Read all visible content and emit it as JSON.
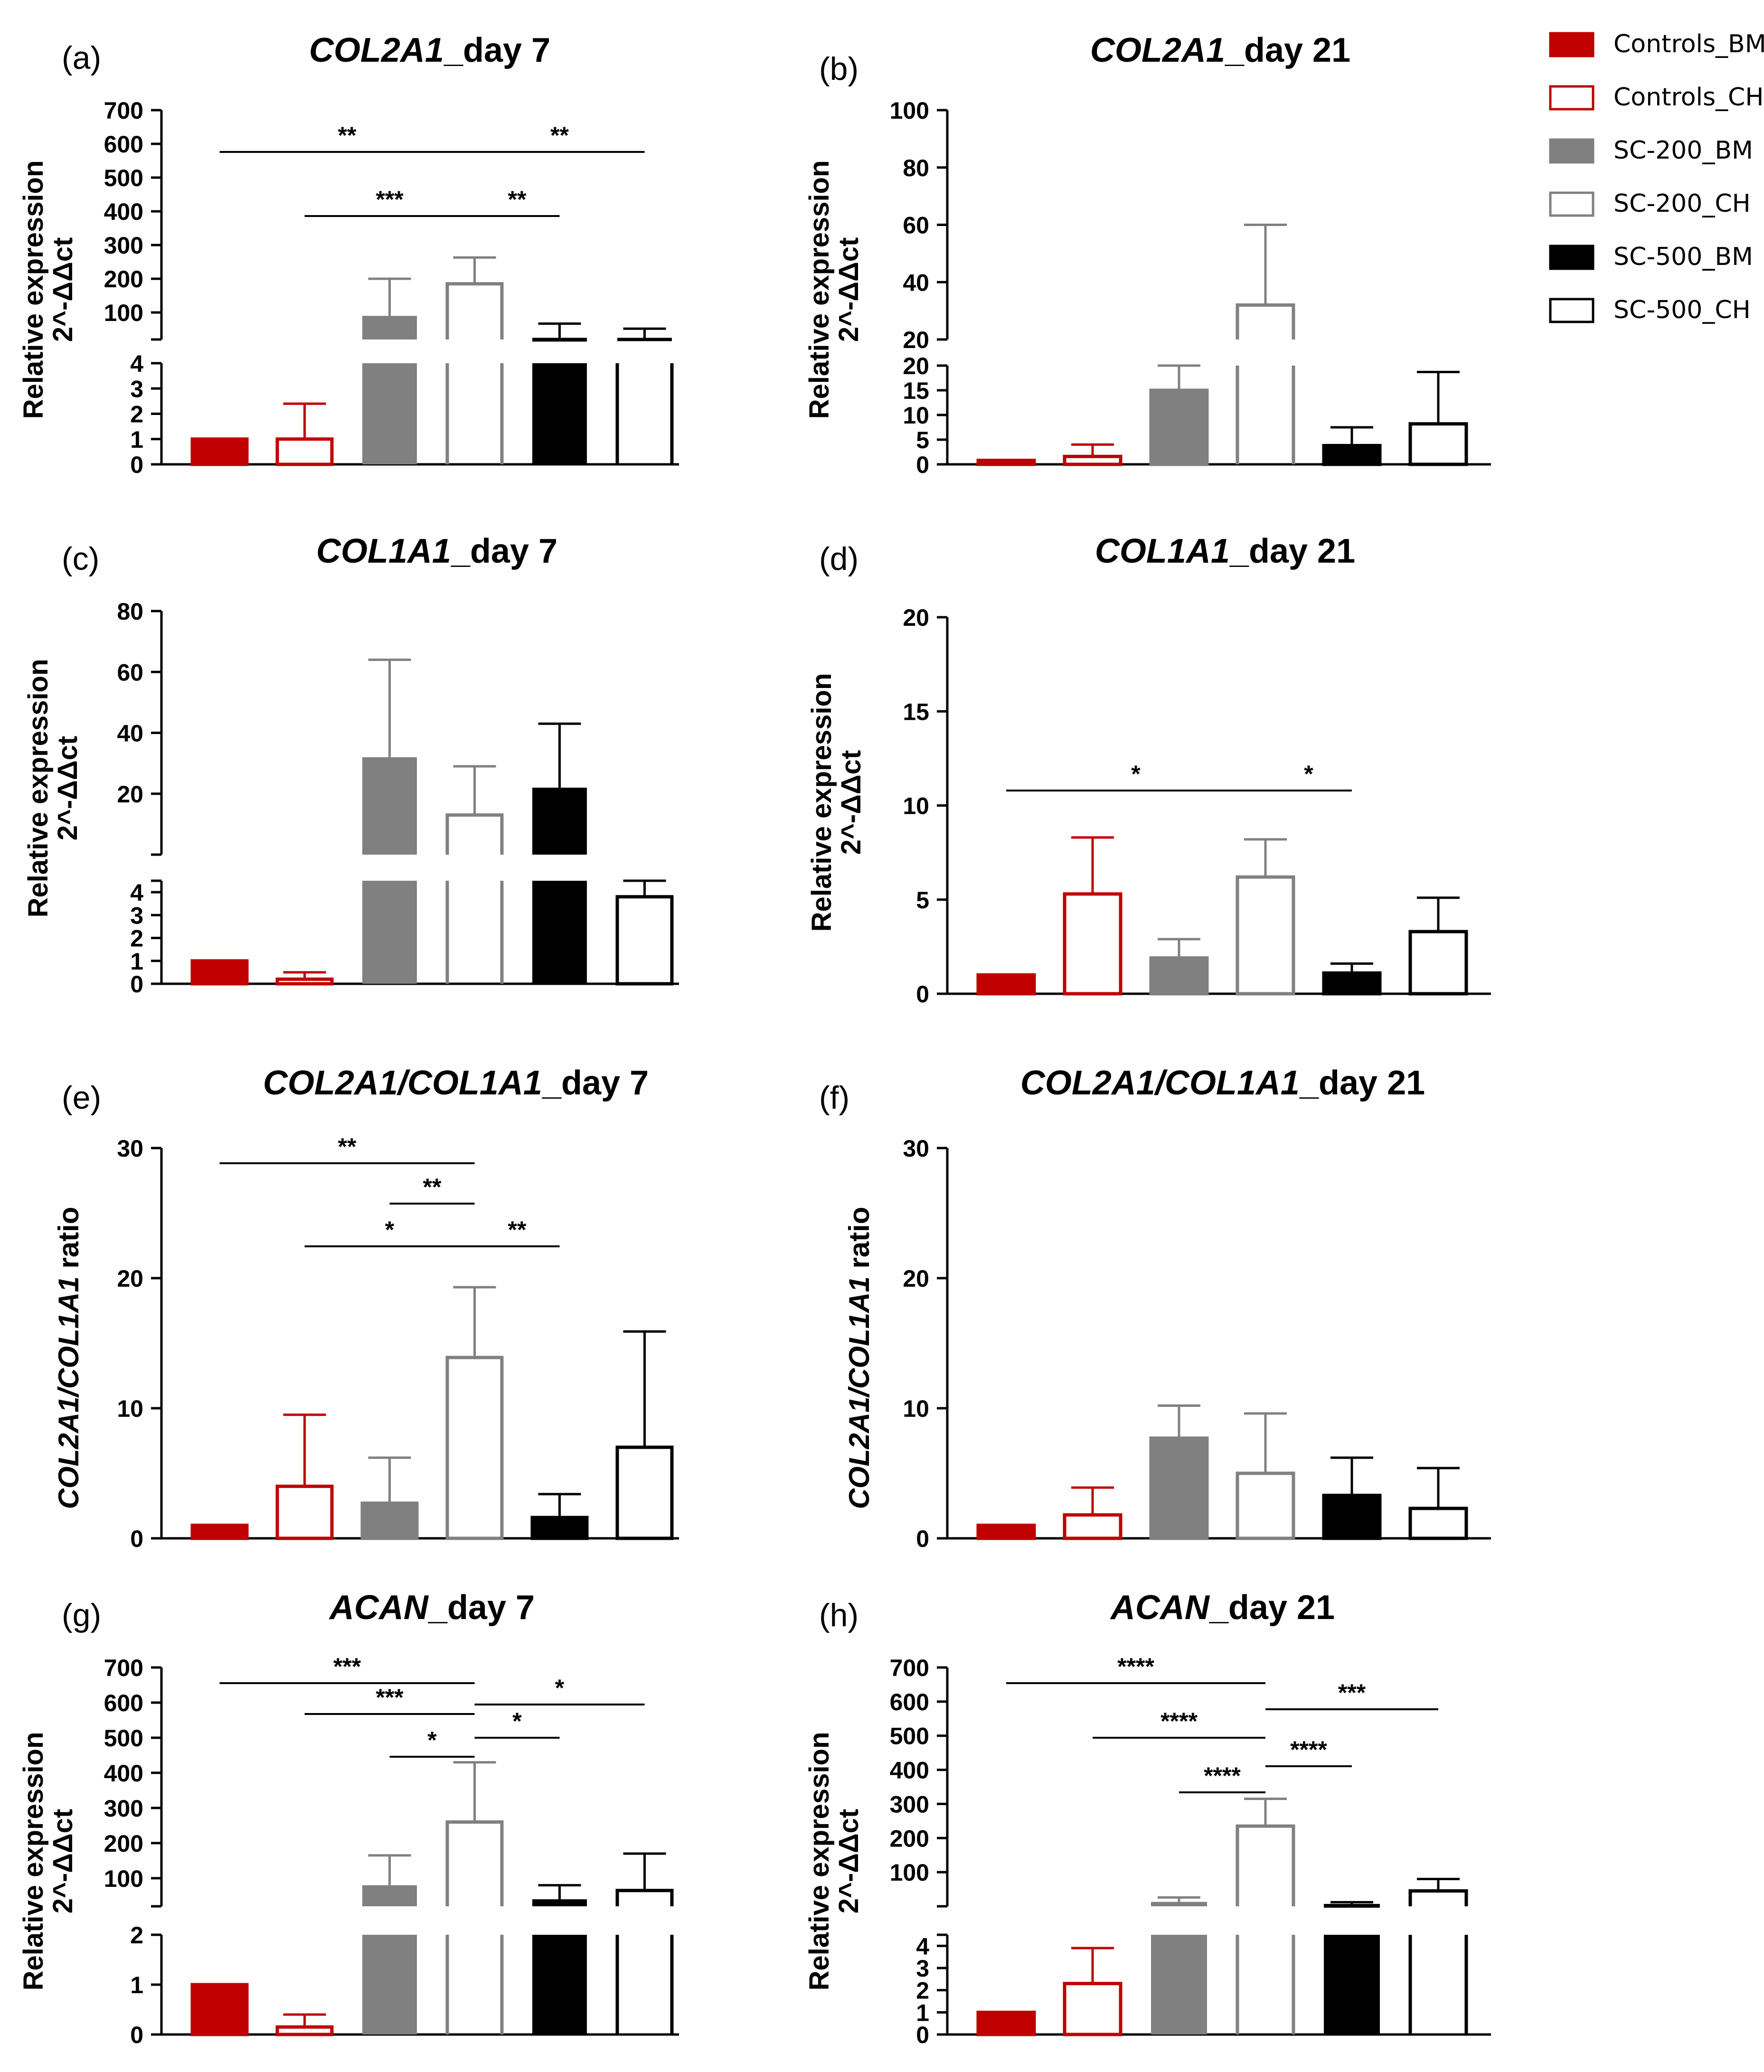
{
  "legend": [
    {
      "name": "Controls_BM",
      "fill": "#c00000",
      "stroke": "#c00000"
    },
    {
      "name": "Controls_CH",
      "fill": "#ffffff",
      "stroke": "#c00000"
    },
    {
      "name": "SC-200_BM",
      "fill": "#808080",
      "stroke": "#808080"
    },
    {
      "name": "SC-200_CH",
      "fill": "#ffffff",
      "stroke": "#808080"
    },
    {
      "name": "SC-500_BM",
      "fill": "#000000",
      "stroke": "#000000"
    },
    {
      "name": "SC-500_CH",
      "fill": "#ffffff",
      "stroke": "#000000"
    }
  ],
  "chart_data": [
    {
      "panel": "(a)",
      "title_italic": "COL2A1",
      "title_rest": "_day 7",
      "type": "bar",
      "ylabel": [
        "Relative expression",
        "2^-ΔΔct"
      ],
      "categories": [
        "Controls_BM",
        "Controls_CH",
        "SC-200_BM",
        "SC-200_CH",
        "SC-500_BM",
        "SC-500_CH"
      ],
      "values": [
        1,
        1,
        90,
        185,
        25,
        10
      ],
      "errors": [
        0,
        1.4,
        110,
        78,
        42,
        42
      ],
      "lower_ylim": [
        0,
        4
      ],
      "upper_ylim": [
        20,
        700
      ],
      "lower_ticks": [
        "0",
        "1",
        "2",
        "3",
        "4"
      ],
      "upper_ticks": [
        "100",
        "200",
        "300",
        "400",
        "500",
        "600",
        "700"
      ],
      "significance": [
        {
          "from": 0,
          "to": 3,
          "label": "**"
        },
        {
          "from": 3,
          "to": 5,
          "label": "**"
        },
        {
          "from": 1,
          "to": 3,
          "label": "***"
        },
        {
          "from": 3,
          "to": 4,
          "label": "**"
        }
      ]
    },
    {
      "panel": "(b)",
      "title_italic": "COL2A1",
      "title_rest": "_day 21",
      "type": "bar",
      "ylabel": [
        "Relative expression",
        "2^-ΔΔct"
      ],
      "categories": [
        "Controls_BM",
        "Controls_CH",
        "SC-200_BM",
        "SC-200_CH",
        "SC-500_BM",
        "SC-500_CH"
      ],
      "values": [
        0.8,
        1.6,
        15,
        32,
        3.8,
        8.2
      ],
      "errors": [
        0,
        2.4,
        5,
        28,
        3.7,
        10.5
      ],
      "lower_ylim": [
        0,
        20
      ],
      "upper_ylim": [
        20,
        100
      ],
      "lower_ticks": [
        "0",
        "5",
        "10",
        "15",
        "20"
      ],
      "upper_ticks": [
        "20",
        "40",
        "60",
        "80",
        "100"
      ],
      "significance": []
    },
    {
      "panel": "(c)",
      "title_italic": "COL1A1",
      "title_rest": "_day 7",
      "type": "bar",
      "ylabel": [
        "Relative expression",
        "2^-ΔΔct"
      ],
      "categories": [
        "Controls_BM",
        "Controls_CH",
        "SC-200_BM",
        "SC-200_CH",
        "SC-500_BM",
        "SC-500_CH"
      ],
      "values": [
        1,
        0.2,
        32,
        13,
        22,
        3.8
      ],
      "errors": [
        0,
        0.3,
        32,
        16,
        21,
        4
      ],
      "lower_ylim": [
        0,
        4.5
      ],
      "upper_ylim": [
        0,
        80
      ],
      "lower_ticks": [
        "0",
        "1",
        "2",
        "3",
        "4"
      ],
      "upper_ticks": [
        "20",
        "40",
        "60",
        "80"
      ],
      "significance": []
    },
    {
      "panel": "(d)",
      "title_italic": "COL1A1",
      "title_rest": "_day 21",
      "type": "bar",
      "ylabel": [
        "Relative expression",
        "2^-ΔΔct"
      ],
      "categories": [
        "Controls_BM",
        "Controls_CH",
        "SC-200_BM",
        "SC-200_CH",
        "SC-500_BM",
        "SC-500_CH"
      ],
      "values": [
        1,
        5.3,
        1.9,
        6.2,
        1.1,
        3.3
      ],
      "errors": [
        0,
        3,
        1,
        2,
        0.5,
        1.8
      ],
      "ylim": [
        0,
        20
      ],
      "ticks": [
        "0",
        "5",
        "10",
        "15",
        "20"
      ],
      "significance": [
        {
          "from": 0,
          "to": 3,
          "label": "*"
        },
        {
          "from": 3,
          "to": 4,
          "label": "*"
        }
      ]
    },
    {
      "panel": "(e)",
      "title_italic": "COL2A1/COL1A1",
      "title_rest": "_day 7",
      "type": "bar",
      "ylabel_italic": "COL2A1/COL1A1",
      "ylabel_rest": " ratio",
      "categories": [
        "Controls_BM",
        "Controls_CH",
        "SC-200_BM",
        "SC-200_CH",
        "SC-500_BM",
        "SC-500_CH"
      ],
      "values": [
        1,
        4,
        2.7,
        13.9,
        1.6,
        7
      ],
      "errors": [
        0,
        5.5,
        3.5,
        5.4,
        1.8,
        8.9
      ],
      "ylim": [
        0,
        30
      ],
      "ticks": [
        "0",
        "10",
        "20",
        "30"
      ],
      "significance": [
        {
          "from": 0,
          "to": 3,
          "label": "**"
        },
        {
          "from": 2,
          "to": 3,
          "label": "**"
        },
        {
          "from": 1,
          "to": 3,
          "label": "*"
        },
        {
          "from": 3,
          "to": 4,
          "label": "**"
        }
      ]
    },
    {
      "panel": "(f)",
      "title_italic": "COL2A1/COL1A1",
      "title_rest": "_day 21",
      "type": "bar",
      "ylabel_italic": "COL2A1/COL1A1",
      "ylabel_rest": " ratio",
      "categories": [
        "Controls_BM",
        "Controls_CH",
        "SC-200_BM",
        "SC-200_CH",
        "SC-500_BM",
        "SC-500_CH"
      ],
      "values": [
        1,
        1.8,
        7.7,
        5,
        3.3,
        2.3
      ],
      "errors": [
        0,
        2.1,
        2.5,
        4.6,
        2.9,
        3.1
      ],
      "ylim": [
        0,
        30
      ],
      "ticks": [
        "0",
        "10",
        "20",
        "30"
      ],
      "significance": []
    },
    {
      "panel": "(g)",
      "title_italic": "ACAN",
      "title_rest": "_day 7",
      "type": "bar",
      "ylabel": [
        "Relative expression",
        "2^-ΔΔct"
      ],
      "categories": [
        "Controls_BM",
        "Controls_CH",
        "SC-200_BM",
        "SC-200_CH",
        "SC-500_BM",
        "SC-500_CH"
      ],
      "values": [
        1,
        0.15,
        80,
        260,
        40,
        65
      ],
      "errors": [
        0,
        0.25,
        85,
        170,
        40,
        105
      ],
      "lower_ylim": [
        0,
        2
      ],
      "upper_ylim": [
        20,
        700
      ],
      "lower_ticks": [
        "0",
        "1",
        "2"
      ],
      "upper_ticks": [
        "100",
        "200",
        "300",
        "400",
        "500",
        "600",
        "700"
      ],
      "significance": [
        {
          "from": 0,
          "to": 3,
          "label": "***"
        },
        {
          "from": 1,
          "to": 3,
          "label": "***"
        },
        {
          "from": 2,
          "to": 3,
          "label": "*"
        },
        {
          "from": 3,
          "to": 5,
          "label": "*"
        },
        {
          "from": 3,
          "to": 4,
          "label": "*"
        }
      ]
    },
    {
      "panel": "(h)",
      "title_italic": "ACAN",
      "title_rest": "_day 21",
      "type": "bar",
      "ylabel": [
        "Relative expression",
        "2^-ΔΔct"
      ],
      "categories": [
        "Controls_BM",
        "Controls_CH",
        "SC-200_BM",
        "SC-200_CH",
        "SC-500_BM",
        "SC-500_CH"
      ],
      "values": [
        1,
        2.3,
        13,
        235,
        7,
        45
      ],
      "errors": [
        0,
        1.6,
        13,
        80,
        5,
        35
      ],
      "lower_ylim": [
        0,
        4.5
      ],
      "upper_ylim": [
        0,
        700
      ],
      "lower_ticks": [
        "0",
        "1",
        "2",
        "3",
        "4"
      ],
      "upper_ticks": [
        "100",
        "200",
        "300",
        "400",
        "500",
        "600",
        "700"
      ],
      "significance": [
        {
          "from": 0,
          "to": 3,
          "label": "****"
        },
        {
          "from": 1,
          "to": 3,
          "label": "****"
        },
        {
          "from": 2,
          "to": 3,
          "label": "****"
        },
        {
          "from": 3,
          "to": 5,
          "label": "***"
        },
        {
          "from": 3,
          "to": 4,
          "label": "****"
        }
      ]
    }
  ]
}
